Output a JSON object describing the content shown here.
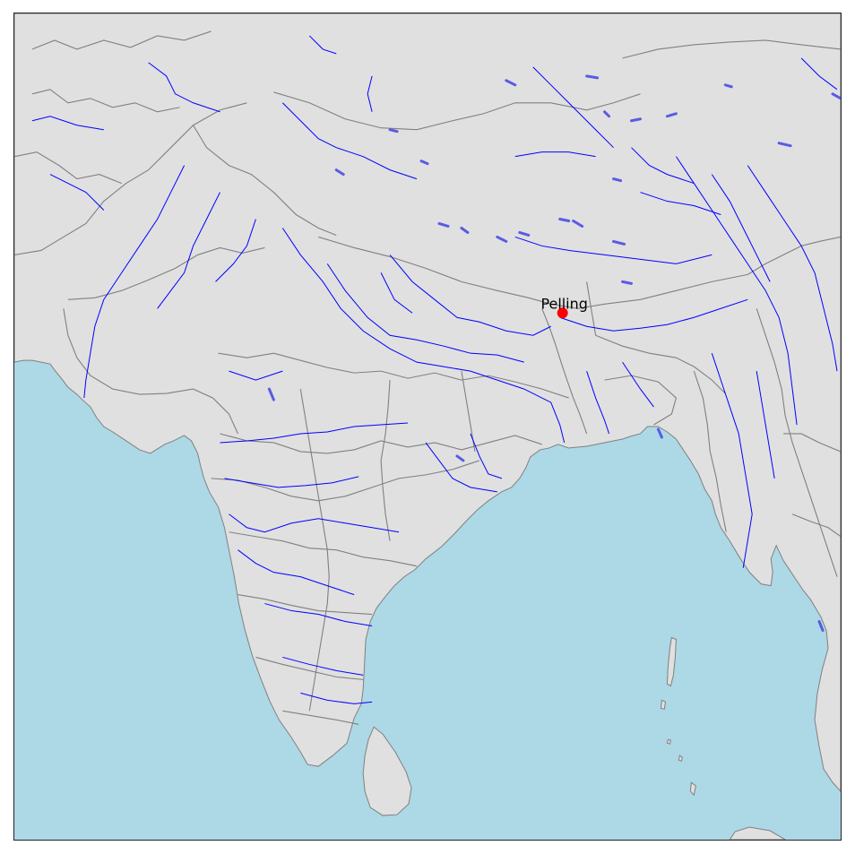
{
  "map": {
    "colors": {
      "ocean": "#add8e6",
      "land": "#e0e0e0",
      "borders": "#808080",
      "rivers": "#0000ff",
      "lakes": "#5a5ae6",
      "marker": "#ff0000"
    },
    "marker": {
      "label": "Pelling",
      "icon": "red-dot-icon"
    }
  }
}
